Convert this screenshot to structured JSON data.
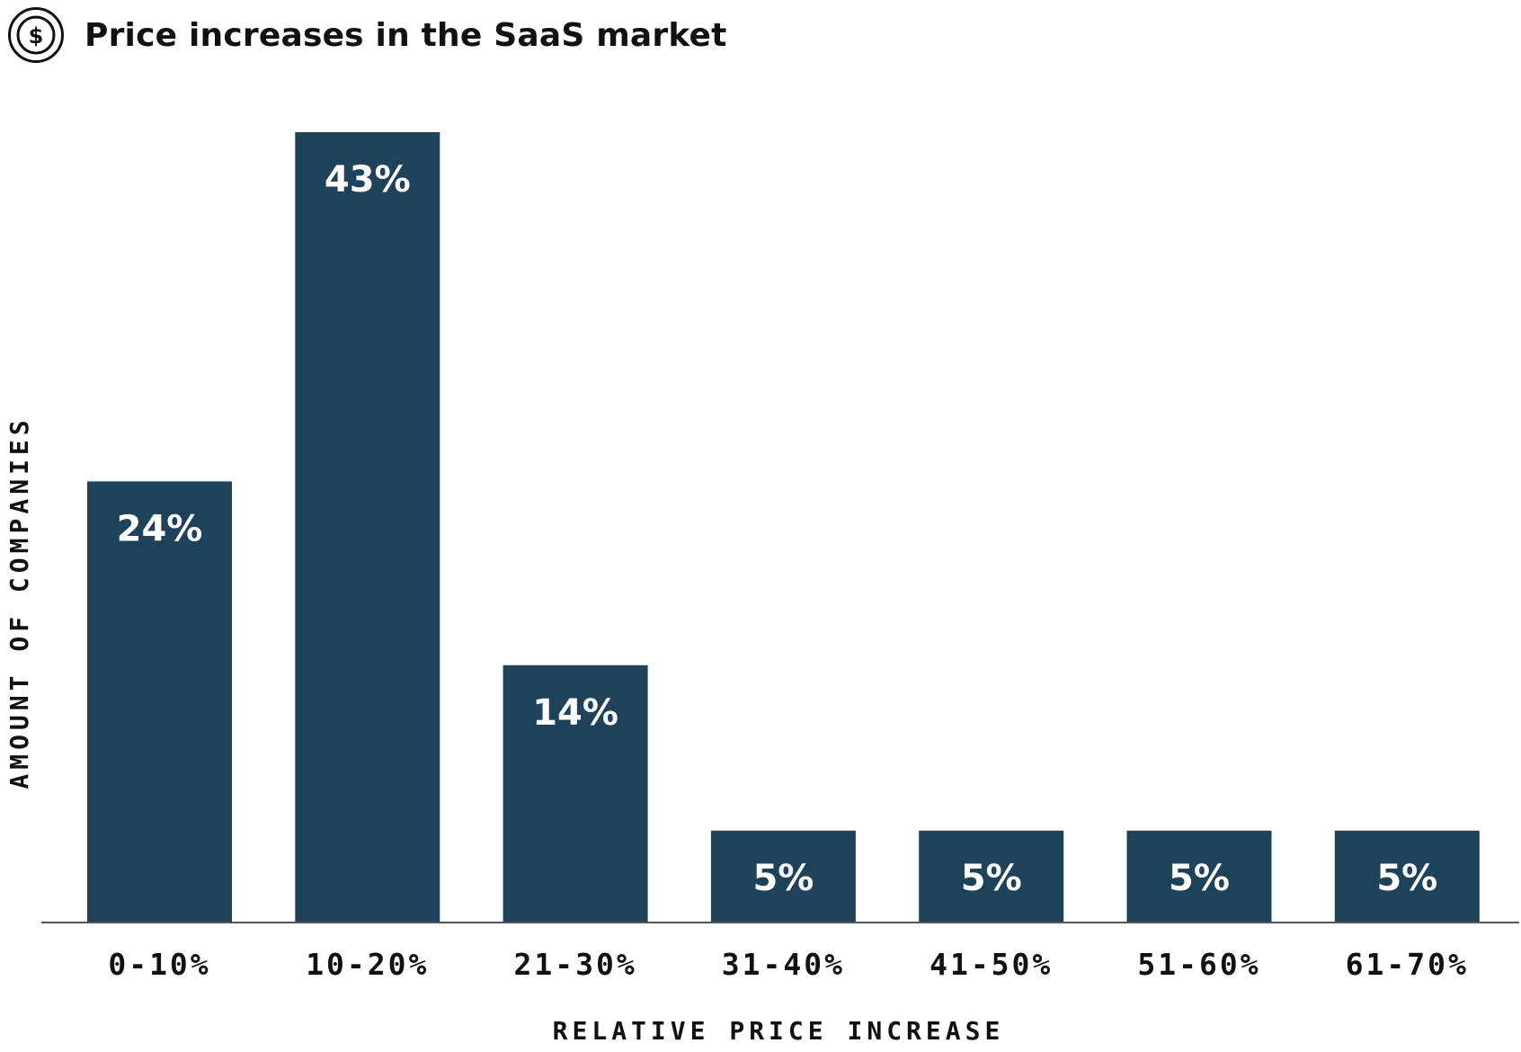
{
  "header": {
    "title": "Price increases in the SaaS market",
    "icon": "dollar-circle-icon"
  },
  "colors": {
    "bar": "#1d4259",
    "bar_label": "#ffffff",
    "text": "#111111",
    "axis": "#555555"
  },
  "chart_data": {
    "type": "bar",
    "title": "Price increases in the SaaS market",
    "xlabel": "RELATIVE PRICE INCREASE",
    "ylabel": "AMOUNT OF COMPANIES",
    "categories": [
      "0-10%",
      "10-20%",
      "21-30%",
      "31-40%",
      "41-50%",
      "51-60%",
      "61-70%"
    ],
    "values": [
      24,
      43,
      14,
      5,
      5,
      5,
      5
    ],
    "data_labels": [
      "24%",
      "43%",
      "14%",
      "5%",
      "5%",
      "5%",
      "5%"
    ],
    "ylim": [
      0,
      43
    ],
    "grid": false,
    "legend": "none"
  }
}
